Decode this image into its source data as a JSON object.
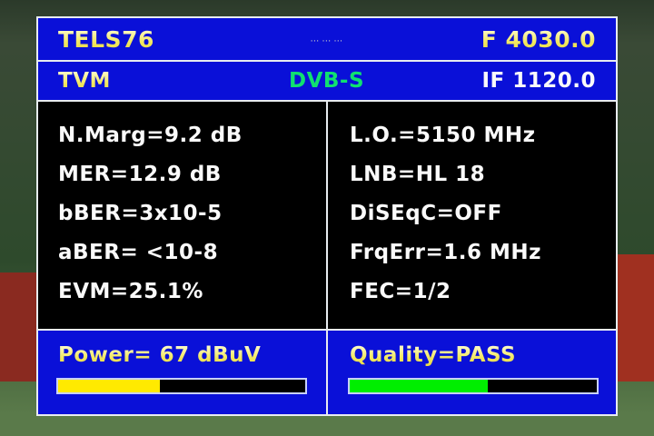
{
  "header": {
    "satellite": "TELS76",
    "center_indicator": "··· ··· ···",
    "frequency": "F 4030.0",
    "channel": "TVM",
    "standard": "DVB-S",
    "if_frequency": "IF 1120.0"
  },
  "measurements_left": [
    "N.Marg=9.2 dB",
    "MER=12.9 dB",
    "bBER=3x10-5",
    "aBER= <10-8",
    "EVM=25.1%"
  ],
  "measurements_right": [
    "L.O.=5150 MHz",
    "LNB=HL 18",
    "DiSEqC=OFF",
    "FrqErr=1.6 MHz",
    "FEC=1/2"
  ],
  "power": {
    "label": "Power= 67 dBuV",
    "level_percent": 41,
    "color": "#ffea00"
  },
  "quality": {
    "label": "Quality=PASS",
    "level_percent": 56,
    "color": "#00ee00"
  },
  "colors": {
    "panel": "#0a10d8",
    "body": "#000000",
    "accent": "#10e070"
  }
}
